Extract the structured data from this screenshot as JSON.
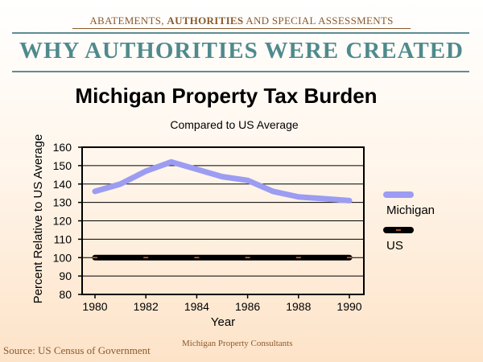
{
  "header": {
    "subtitle_pre": "ABATEMENTS, ",
    "subtitle_bold": "AUTHORITIES",
    "subtitle_post": " AND SPECIAL ASSESSMENTS",
    "title": "WHY AUTHORITIES WERE CREATED"
  },
  "footer": {
    "source": "Source: US Census of Government",
    "credit": "Michigan Property Consultants"
  },
  "chart_data": {
    "type": "line",
    "title": "Michigan Property Tax Burden",
    "subtitle": "Compared to US Average",
    "xlabel": "Year",
    "ylabel": "Percent Relative to US Average",
    "xlim": [
      1980,
      1990
    ],
    "ylim": [
      80,
      160
    ],
    "x_ticks": [
      1980,
      1982,
      1984,
      1986,
      1988,
      1990
    ],
    "y_ticks": [
      80,
      90,
      100,
      110,
      120,
      130,
      140,
      150,
      160
    ],
    "grid": true,
    "legend_position": "right",
    "x": [
      1980,
      1981,
      1982,
      1983,
      1984,
      1985,
      1986,
      1987,
      1988,
      1989,
      1990
    ],
    "series": [
      {
        "name": "Michigan",
        "color": "#9c9cf2",
        "values": [
          136,
          140,
          147,
          152,
          148,
          144,
          142,
          136,
          133,
          132,
          131
        ]
      },
      {
        "name": "US",
        "color": "#000000",
        "values": [
          100,
          100,
          100,
          100,
          100,
          100,
          100,
          100,
          100,
          100,
          100
        ]
      }
    ]
  }
}
